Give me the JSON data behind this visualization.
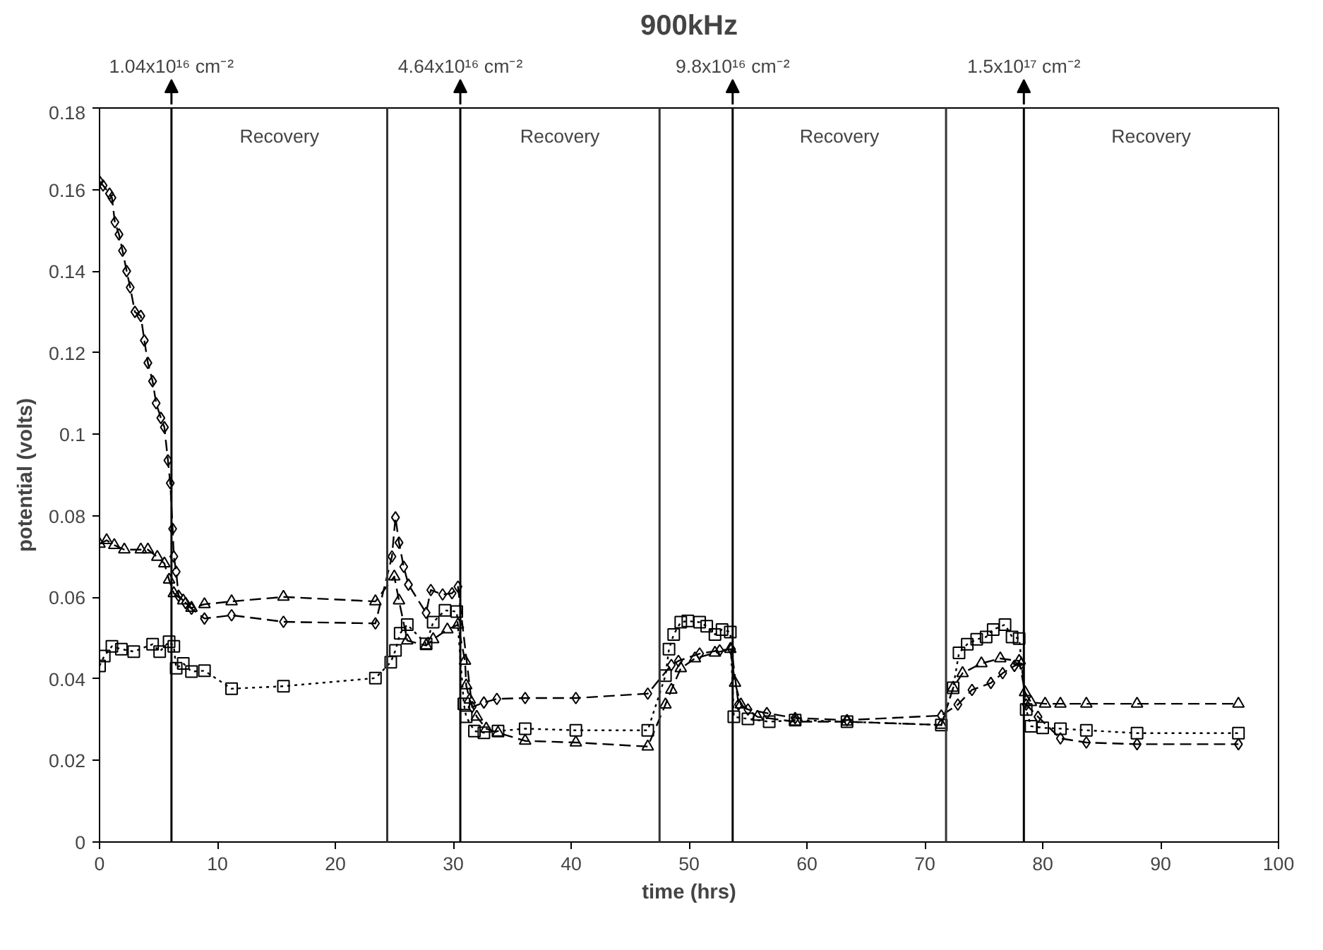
{
  "chart_data": {
    "type": "line",
    "title": "900kHz",
    "xlabel": "time (hrs)",
    "ylabel": "potential (volts)",
    "xlim": [
      0,
      100
    ],
    "xticks": [
      0,
      10,
      20,
      30,
      40,
      50,
      60,
      70,
      80,
      90,
      100
    ],
    "ylim": [
      0,
      0.18
    ],
    "yticks": [
      0,
      0.02,
      0.04,
      0.06,
      0.08,
      0.1,
      0.12,
      0.14,
      0.16,
      0.18
    ],
    "grid": false,
    "series": [
      {
        "color": "#000000",
        "marker": "diamond",
        "line_style": "dashed",
        "x": [
          0,
          0.3,
          0.85,
          1.05,
          1.3,
          1.65,
          1.95,
          2.3,
          2.6,
          3.0,
          3.5,
          3.8,
          4.1,
          4.5,
          4.8,
          5.2,
          5.5,
          5.8,
          6.0,
          6.2,
          6.3,
          6.5,
          6.7,
          7.3,
          7.8,
          8.9,
          11.2,
          15.6,
          23.4,
          24.8,
          25.1,
          25.4,
          25.8,
          26.2,
          27.7,
          28.1,
          29.1,
          29.9,
          30.4,
          31.6,
          32.6,
          33.7,
          36.1,
          40.4,
          46.5,
          48.5,
          49.1,
          50.9,
          52.6,
          53.6,
          54.2,
          55.0,
          56.6,
          59.0,
          63.4,
          71.4,
          72.8,
          74.0,
          75.6,
          76.6,
          77.6,
          78.2,
          78.6,
          79.6,
          81.5,
          83.7,
          88.0,
          96.6
        ],
        "values": [
          0.162,
          0.161,
          0.159,
          0.158,
          0.152,
          0.149,
          0.145,
          0.14,
          0.136,
          0.13,
          0.129,
          0.123,
          0.1175,
          0.113,
          0.1076,
          0.104,
          0.1017,
          0.0936,
          0.088,
          0.0768,
          0.07,
          0.0663,
          0.0604,
          0.0586,
          0.0572,
          0.0548,
          0.0556,
          0.054,
          0.0536,
          0.07,
          0.0796,
          0.0734,
          0.0675,
          0.0631,
          0.0562,
          0.0618,
          0.0607,
          0.061,
          0.0626,
          0.0331,
          0.0342,
          0.0351,
          0.0353,
          0.0353,
          0.0364,
          0.0434,
          0.0444,
          0.0462,
          0.047,
          0.0473,
          0.0337,
          0.0325,
          0.0316,
          0.0304,
          0.0299,
          0.031,
          0.0337,
          0.0373,
          0.039,
          0.0414,
          0.0432,
          0.0438,
          0.0337,
          0.0307,
          0.0254,
          0.0244,
          0.024,
          0.024
        ]
      },
      {
        "color": "#000000",
        "marker": "triangle",
        "line_style": "dashed",
        "x": [
          0,
          0.6,
          1.25,
          2.1,
          3.5,
          4.1,
          4.9,
          5.5,
          5.9,
          6.3,
          7.1,
          7.8,
          8.9,
          11.2,
          15.6,
          23.4,
          25.0,
          25.4,
          26.1,
          27.7,
          28.3,
          29.5,
          30.4,
          31.0,
          31.1,
          31.4,
          32.0,
          32.8,
          33.8,
          36.1,
          40.4,
          46.5,
          48.0,
          48.5,
          49.3,
          50.5,
          52.2,
          53.5,
          53.9,
          54.4,
          55.8,
          59.0,
          63.4,
          71.4,
          72.4,
          73.2,
          74.8,
          76.4,
          78.0,
          78.5,
          79.0,
          80.2,
          81.5,
          83.7,
          88.0,
          96.6
        ],
        "values": [
          0.0731,
          0.074,
          0.0728,
          0.0717,
          0.0717,
          0.0717,
          0.0699,
          0.0683,
          0.0643,
          0.061,
          0.0592,
          0.0574,
          0.0583,
          0.059,
          0.0601,
          0.059,
          0.0651,
          0.0592,
          0.0494,
          0.0482,
          0.0497,
          0.0521,
          0.0533,
          0.0444,
          0.0384,
          0.0349,
          0.0307,
          0.0278,
          0.0268,
          0.0248,
          0.0244,
          0.0234,
          0.0337,
          0.0373,
          0.0426,
          0.045,
          0.0464,
          0.0473,
          0.039,
          0.0337,
          0.0307,
          0.0295,
          0.0295,
          0.0287,
          0.0378,
          0.0414,
          0.0438,
          0.045,
          0.0444,
          0.0367,
          0.0343,
          0.0339,
          0.0339,
          0.0339,
          0.0339,
          0.0339
        ]
      },
      {
        "color": "#000000",
        "marker": "square",
        "line_style": "dotted",
        "x": [
          0,
          0.4,
          1.05,
          1.85,
          2.9,
          4.5,
          5.1,
          5.9,
          6.3,
          6.5,
          7.1,
          7.8,
          8.9,
          11.2,
          15.6,
          23.4,
          24.7,
          25.1,
          25.5,
          26.1,
          27.7,
          28.3,
          29.3,
          30.3,
          30.9,
          31.1,
          31.8,
          32.6,
          33.8,
          36.1,
          40.4,
          46.5,
          48.0,
          48.3,
          48.7,
          49.3,
          49.9,
          50.9,
          51.5,
          52.2,
          52.8,
          53.5,
          53.8,
          55.0,
          56.8,
          59.0,
          63.4,
          71.4,
          72.4,
          72.9,
          73.6,
          74.4,
          75.2,
          75.8,
          76.8,
          77.4,
          78.0,
          78.6,
          79.0,
          80.0,
          81.5,
          83.7,
          88.0,
          96.6
        ],
        "values": [
          0.0432,
          0.0456,
          0.048,
          0.0473,
          0.0467,
          0.0485,
          0.0467,
          0.0491,
          0.048,
          0.0426,
          0.0438,
          0.0418,
          0.042,
          0.0376,
          0.0382,
          0.0402,
          0.0441,
          0.047,
          0.0512,
          0.0533,
          0.0486,
          0.0539,
          0.0568,
          0.0565,
          0.0339,
          0.0307,
          0.0272,
          0.0268,
          0.0272,
          0.0278,
          0.0274,
          0.0274,
          0.0408,
          0.0473,
          0.0509,
          0.0539,
          0.0542,
          0.0539,
          0.0529,
          0.0509,
          0.0521,
          0.0515,
          0.0307,
          0.0302,
          0.0295,
          0.0299,
          0.0295,
          0.0287,
          0.0378,
          0.0464,
          0.0485,
          0.0497,
          0.0503,
          0.0521,
          0.0533,
          0.0503,
          0.0499,
          0.0325,
          0.0284,
          0.028,
          0.0278,
          0.0274,
          0.0267,
          0.0267
        ]
      }
    ],
    "ref_lines": [
      {
        "axis": "x",
        "value": 6.1,
        "label": "1.04x10¹⁶ cm⁻²"
      },
      {
        "axis": "x",
        "value": 24.4
      },
      {
        "axis": "x",
        "value": 30.6,
        "label": "4.64x10¹⁶ cm⁻²"
      },
      {
        "axis": "x",
        "value": 47.5
      },
      {
        "axis": "x",
        "value": 53.7,
        "label": "9.8x10¹⁶ cm⁻²"
      },
      {
        "axis": "x",
        "value": 71.8
      },
      {
        "axis": "x",
        "value": 78.4,
        "label": "1.5x10¹⁷ cm⁻²"
      }
    ],
    "annotations": [
      "Recovery",
      "Recovery",
      "Recovery",
      "Recovery"
    ]
  }
}
